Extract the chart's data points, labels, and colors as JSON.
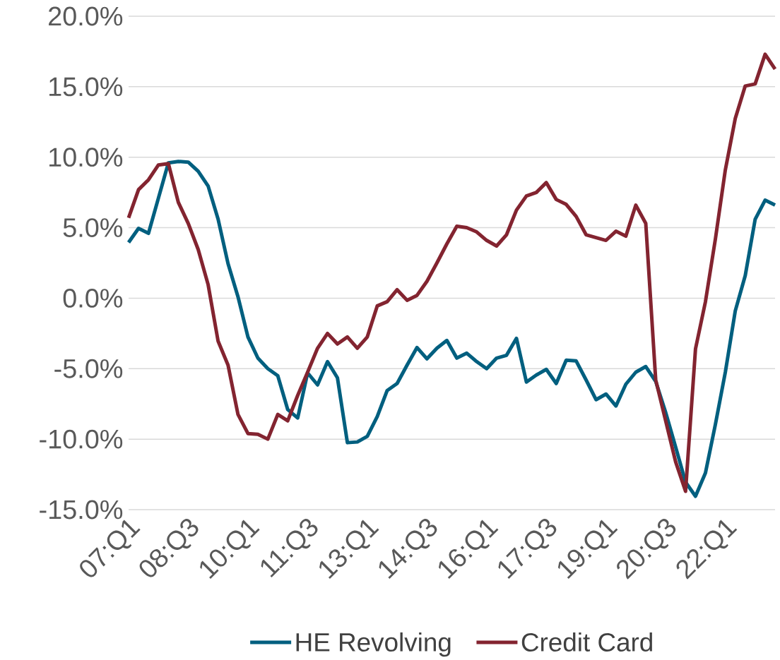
{
  "chart_data": {
    "type": "line",
    "categories": [
      "07:Q1",
      null,
      null,
      null,
      null,
      null,
      "08:Q3",
      null,
      null,
      null,
      null,
      null,
      "10:Q1",
      null,
      null,
      null,
      null,
      null,
      "11:Q3",
      null,
      null,
      null,
      null,
      null,
      "13:Q1",
      null,
      null,
      null,
      null,
      null,
      "14:Q3",
      null,
      null,
      null,
      null,
      null,
      "16:Q1",
      null,
      null,
      null,
      null,
      null,
      "17:Q3",
      null,
      null,
      null,
      null,
      null,
      "19:Q1",
      null,
      null,
      null,
      null,
      null,
      "20:Q3",
      null,
      null,
      null,
      null,
      null,
      "22:Q1",
      null,
      null,
      null,
      null,
      null
    ],
    "series": [
      {
        "name": "HE Revolving",
        "color": "#005f7f",
        "values": [
          3.95,
          4.95,
          4.6,
          7.1,
          9.6,
          9.7,
          9.65,
          9.0,
          7.95,
          5.6,
          2.45,
          0.1,
          -2.75,
          -4.25,
          -5.0,
          -5.5,
          -7.9,
          -8.5,
          -5.3,
          -6.15,
          -4.5,
          -5.65,
          -10.25,
          -10.2,
          -9.8,
          -8.4,
          -6.55,
          -6.05,
          -4.75,
          -3.5,
          -4.3,
          -3.55,
          -3.0,
          -4.25,
          -3.9,
          -4.5,
          -5.0,
          -4.25,
          -4.05,
          -2.85,
          -5.95,
          -5.45,
          -5.05,
          -6.05,
          -4.4,
          -4.45,
          -5.8,
          -7.2,
          -6.8,
          -7.65,
          -6.1,
          -5.25,
          -4.85,
          -5.9,
          -8.1,
          -10.55,
          -13.05,
          -14.05,
          -12.4,
          -8.95,
          -5.25,
          -0.9,
          1.6,
          5.6,
          6.95,
          6.6
        ]
      },
      {
        "name": "Credit Card",
        "color": "#832430",
        "values": [
          5.7,
          7.7,
          8.4,
          9.45,
          9.55,
          6.8,
          5.3,
          3.45,
          0.95,
          -3.05,
          -4.75,
          -8.25,
          -9.6,
          -9.65,
          -10.0,
          -8.25,
          -8.7,
          -6.9,
          -5.25,
          -3.55,
          -2.5,
          -3.25,
          -2.75,
          -3.55,
          -2.75,
          -0.55,
          -0.25,
          0.6,
          -0.15,
          0.2,
          1.2,
          2.5,
          3.85,
          5.1,
          5.0,
          4.7,
          4.1,
          3.7,
          4.5,
          6.25,
          7.25,
          7.5,
          8.2,
          7.0,
          6.65,
          5.8,
          4.5,
          4.3,
          4.1,
          4.75,
          4.4,
          6.6,
          5.3,
          -5.8,
          -8.7,
          -11.6,
          -13.7,
          -3.6,
          -0.25,
          4.2,
          9.1,
          12.75,
          15.05,
          15.2,
          17.3,
          16.25
        ]
      }
    ],
    "ylim": [
      -15,
      20
    ],
    "yticks": [
      {
        "value": -15,
        "label": "-15.0%"
      },
      {
        "value": -10,
        "label": "-10.0%"
      },
      {
        "value": -5,
        "label": "-5.0%"
      },
      {
        "value": 0,
        "label": "0.0%"
      },
      {
        "value": 5,
        "label": "5.0%"
      },
      {
        "value": 10,
        "label": "10.0%"
      },
      {
        "value": 15,
        "label": "15.0%"
      },
      {
        "value": 20,
        "label": "20.0%"
      }
    ],
    "grid": "y",
    "legend": "bottom",
    "marker": "none",
    "line_style": "solid"
  }
}
